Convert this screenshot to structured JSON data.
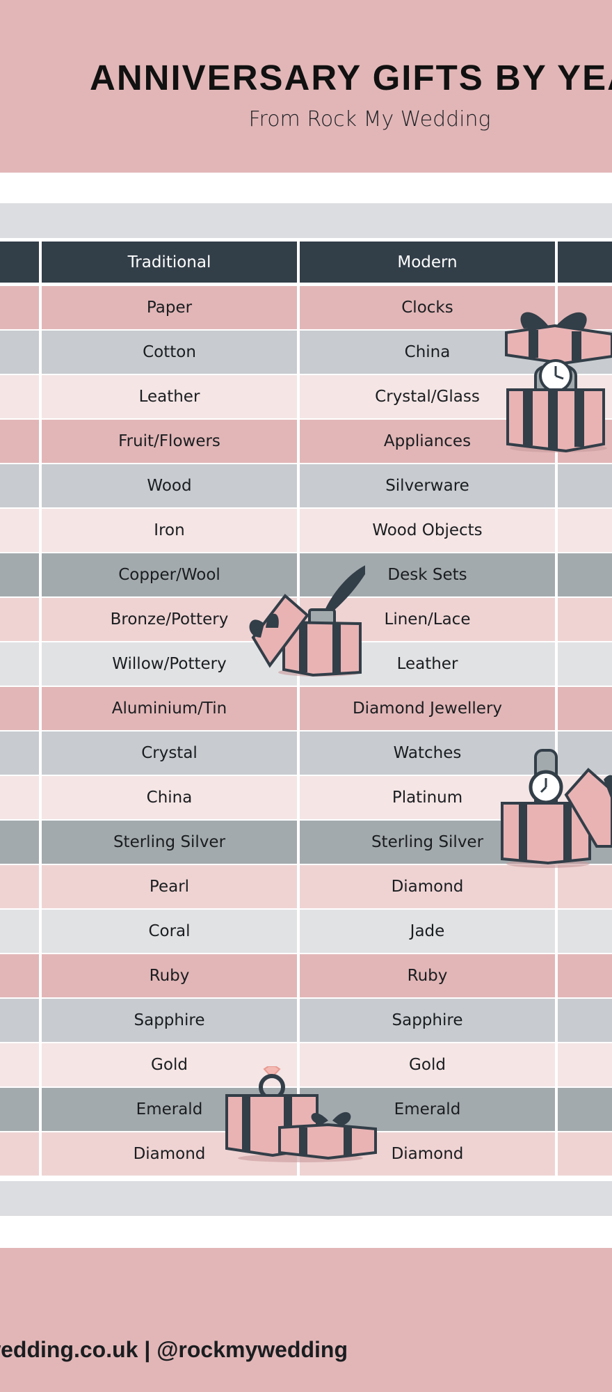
{
  "header": {
    "title": "ANNIVERSARY GIFTS BY YEA",
    "subtitle": "From Rock My Wedding"
  },
  "table": {
    "columns": [
      "Traditional",
      "Modern"
    ],
    "rows": [
      {
        "traditional": "Paper",
        "modern": "Clocks",
        "tone": "rose"
      },
      {
        "traditional": "Cotton",
        "modern": "China",
        "tone": "grey"
      },
      {
        "traditional": "Leather",
        "modern": "Crystal/Glass",
        "tone": "blush"
      },
      {
        "traditional": "Fruit/Flowers",
        "modern": "Appliances",
        "tone": "rose"
      },
      {
        "traditional": "Wood",
        "modern": "Silverware",
        "tone": "grey"
      },
      {
        "traditional": "Iron",
        "modern": "Wood Objects",
        "tone": "blush"
      },
      {
        "traditional": "Copper/Wool",
        "modern": "Desk Sets",
        "tone": "slate"
      },
      {
        "traditional": "Bronze/Pottery",
        "modern": "Linen/Lace",
        "tone": "pink"
      },
      {
        "traditional": "Willow/Pottery",
        "modern": "Leather",
        "tone": "mist"
      },
      {
        "traditional": "Aluminium/Tin",
        "modern": "Diamond Jewellery",
        "tone": "rose"
      },
      {
        "traditional": "Crystal",
        "modern": "Watches",
        "tone": "grey"
      },
      {
        "traditional": "China",
        "modern": "Platinum",
        "tone": "blush"
      },
      {
        "traditional": "Sterling Silver",
        "modern": "Sterling Silver",
        "tone": "slate"
      },
      {
        "traditional": "Pearl",
        "modern": "Diamond",
        "tone": "pink"
      },
      {
        "traditional": "Coral",
        "modern": "Jade",
        "tone": "mist"
      },
      {
        "traditional": "Ruby",
        "modern": "Ruby",
        "tone": "rose"
      },
      {
        "traditional": "Sapphire",
        "modern": "Sapphire",
        "tone": "grey"
      },
      {
        "traditional": "Gold",
        "modern": "Gold",
        "tone": "blush"
      },
      {
        "traditional": "Emerald",
        "modern": "Emerald",
        "tone": "slate"
      },
      {
        "traditional": "Diamond",
        "modern": "Diamond",
        "tone": "pink"
      }
    ]
  },
  "footer": {
    "text": "wedding.co.uk | @rockmywedding"
  },
  "tones": {
    "rose": "#e2b6b7",
    "grey": "#c8ccd0",
    "blush": "#f5e5e5",
    "slate": "#a3aaad",
    "pink": "#efd3d3",
    "mist": "#e1e2e4"
  },
  "icons": {
    "gift-clock": "gift-box-clock-icon",
    "gift-quill": "gift-box-quill-icon",
    "gift-watch": "gift-box-watch-icon",
    "gift-ring": "gift-box-ring-icon"
  }
}
